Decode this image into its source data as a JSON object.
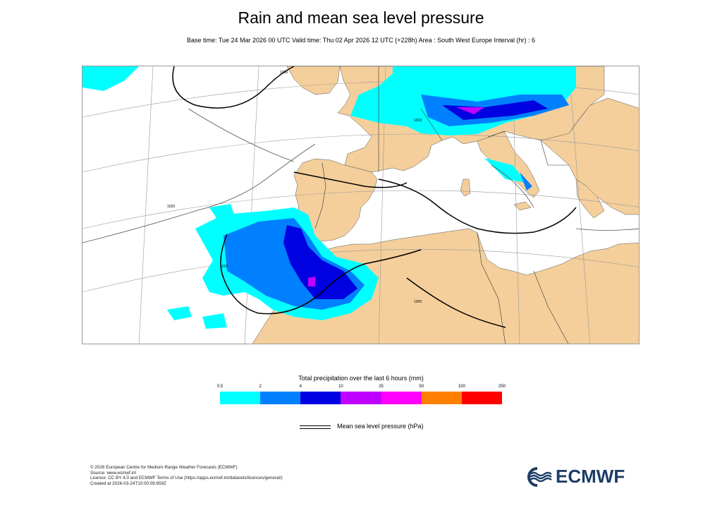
{
  "title": "Rain and mean sea level pressure",
  "subtitle": "Base time: Tue 24 Mar 2026 00 UTC Valid time: Thu 02 Apr 2026 12 UTC (+228h) Area : South West Europe Interval (hr) : 6",
  "map": {
    "region": "South West Europe",
    "isobar_labels": [
      "1030",
      "1020",
      "1015",
      "1010",
      "1005"
    ],
    "colors": {
      "land": "#f4cf9b",
      "sea": "#ffffff",
      "isobar": "#000000",
      "border": "#222222",
      "graticule": "#888888"
    }
  },
  "colorbar": {
    "title": "Total precipitation over the last 6 hours (mm)",
    "ticks": [
      "0.5",
      "2",
      "4",
      "10",
      "25",
      "50",
      "100",
      "250"
    ],
    "colors": [
      "#00ffff",
      "#0080ff",
      "#0000e0",
      "#c000ff",
      "#ff00ff",
      "#ff8000",
      "#ff0000"
    ]
  },
  "legend": {
    "pressure_label": "Mean sea level pressure (hPa)"
  },
  "footer": {
    "lines": [
      "© 2026 European Centre for Medium-Range Weather Forecasts (ECMWF)",
      "Source: www.ecmwf.int",
      "Licence: CC BY 4.0 and ECMWF Terms of Use (https://apps.ecmwf.int/datasets/licences/general/)",
      "Created at 2026-03-24T10:00:09.659Z"
    ]
  },
  "logo": {
    "text": "ECMWF"
  }
}
